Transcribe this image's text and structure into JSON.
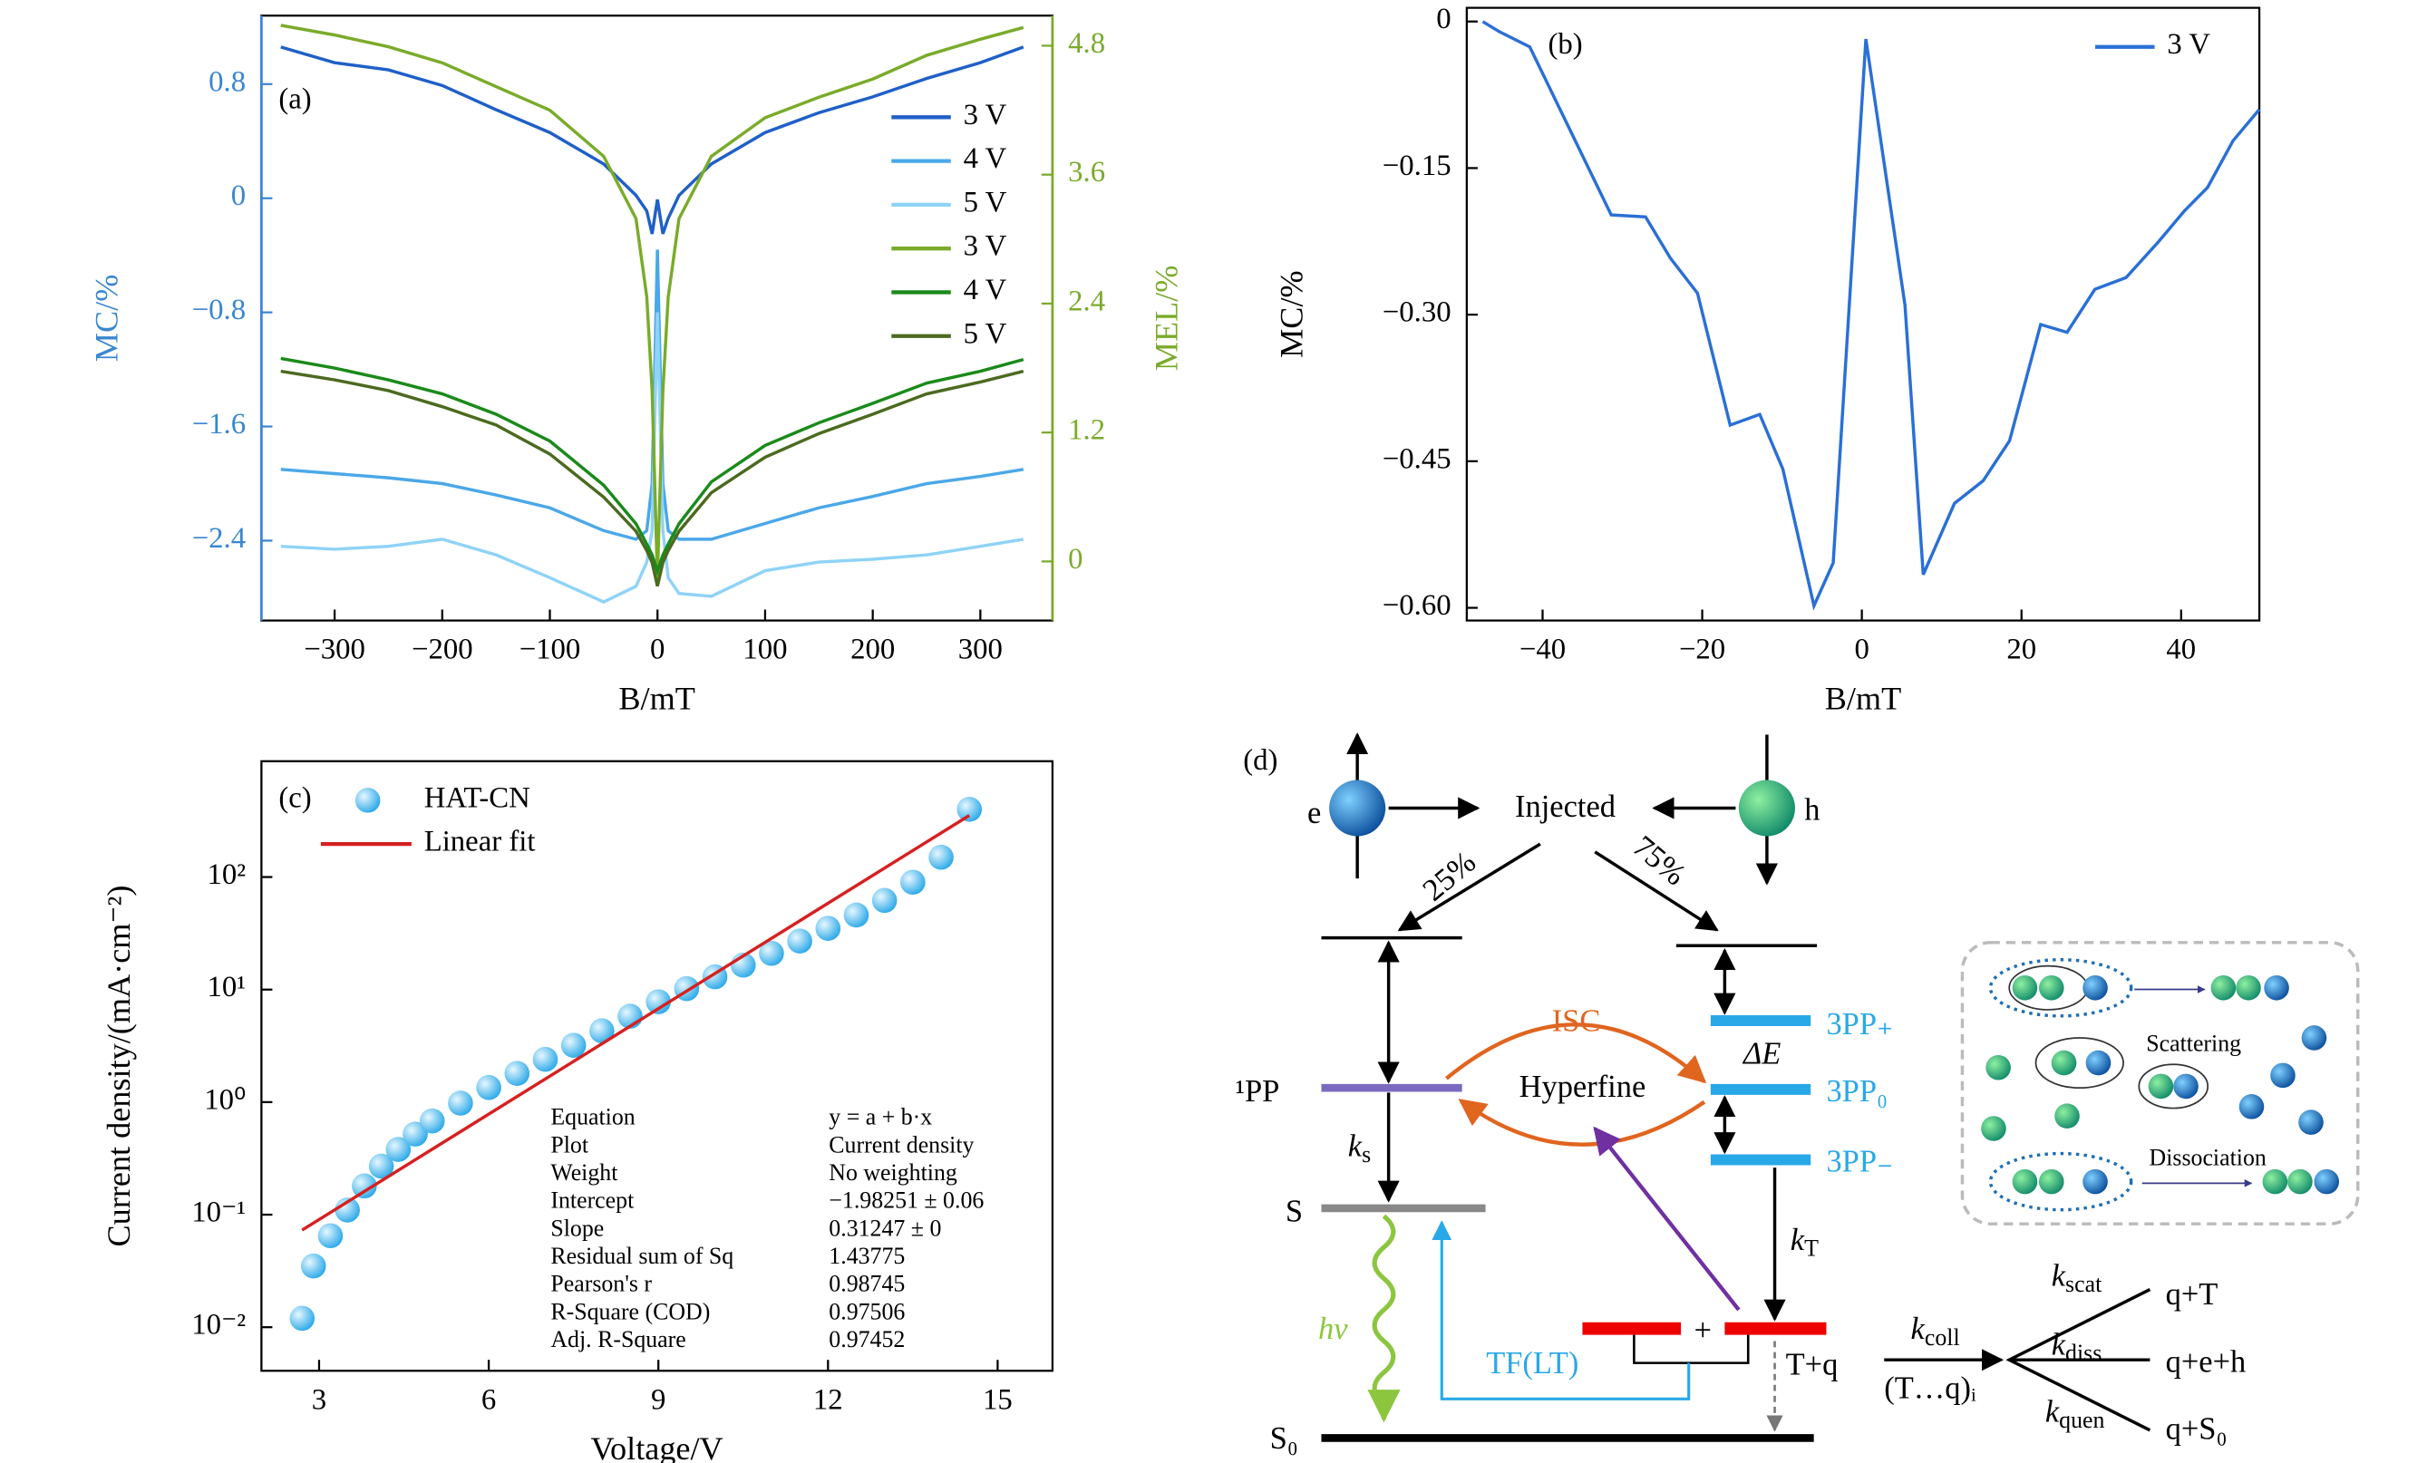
{
  "chart_data": [
    {
      "type": "line",
      "label": "(a)",
      "xlabel": "B/mT",
      "ylabel": "MC/%",
      "y2label": "MEL/%",
      "ycolor": "#3a86d0",
      "y2color": "#7aab2a",
      "legend": "center right",
      "x": [
        -350,
        -300,
        -250,
        -200,
        -150,
        -100,
        -50,
        -20,
        -10,
        -5,
        0,
        5,
        10,
        20,
        50,
        100,
        150,
        200,
        250,
        300,
        340
      ],
      "series": [
        {
          "name": "3 V",
          "color": "#1f5fc8",
          "axis": "y",
          "values": [
            1.06,
            0.95,
            0.9,
            0.79,
            0.62,
            0.46,
            0.24,
            0.02,
            -0.09,
            -0.25,
            -0.01,
            -0.25,
            -0.14,
            0.02,
            0.24,
            0.46,
            0.6,
            0.71,
            0.84,
            0.95,
            1.06
          ]
        },
        {
          "name": "4 V",
          "color": "#4aa8e8",
          "axis": "y",
          "values": [
            -1.9,
            -1.93,
            -1.96,
            -2.0,
            -2.08,
            -2.17,
            -2.33,
            -2.39,
            -2.33,
            -2.0,
            -0.36,
            -2.0,
            -2.33,
            -2.39,
            -2.39,
            -2.28,
            -2.17,
            -2.09,
            -2.0,
            -1.95,
            -1.9
          ]
        },
        {
          "name": "5 V",
          "color": "#8fd3f7",
          "axis": "y",
          "values": [
            -2.44,
            -2.46,
            -2.44,
            -2.39,
            -2.5,
            -2.66,
            -2.83,
            -2.72,
            -2.55,
            -2.33,
            -0.8,
            -2.33,
            -2.66,
            -2.77,
            -2.79,
            -2.61,
            -2.55,
            -2.53,
            -2.5,
            -2.44,
            -2.39
          ]
        },
        {
          "name": "3 V",
          "color": "#7aab2a",
          "axis": "y2",
          "values": [
            4.99,
            4.9,
            4.79,
            4.64,
            4.42,
            4.2,
            3.77,
            3.19,
            2.46,
            1.59,
            -0.16,
            1.59,
            2.46,
            3.19,
            3.77,
            4.13,
            4.32,
            4.49,
            4.71,
            4.86,
            4.97
          ]
        },
        {
          "name": "4 V",
          "color": "#1a8a1a",
          "axis": "y2",
          "values": [
            1.89,
            1.8,
            1.69,
            1.56,
            1.37,
            1.12,
            0.71,
            0.35,
            0.16,
            0.06,
            -0.09,
            0.06,
            0.16,
            0.35,
            0.74,
            1.08,
            1.29,
            1.47,
            1.66,
            1.77,
            1.88
          ]
        },
        {
          "name": "5 V",
          "color": "#4b6a1f",
          "axis": "y2",
          "values": [
            1.77,
            1.69,
            1.59,
            1.44,
            1.27,
            1.0,
            0.6,
            0.28,
            0.1,
            -0.01,
            -0.23,
            -0.01,
            0.1,
            0.28,
            0.64,
            0.97,
            1.19,
            1.37,
            1.56,
            1.67,
            1.77
          ]
        }
      ],
      "xlim": [
        -368,
        367
      ],
      "xticks": [
        {
          "value": -300,
          "label": "−300"
        },
        {
          "value": -200,
          "label": "−200"
        },
        {
          "value": -100,
          "label": "−100"
        },
        0,
        100,
        200,
        300
      ],
      "ylim": [
        -2.96,
        1.28
      ],
      "yticks": [
        0.8,
        0,
        {
          "value": -0.8,
          "label": "−0.8"
        },
        {
          "value": -1.6,
          "label": "−1.6"
        },
        {
          "value": -2.4,
          "label": "−2.4"
        }
      ],
      "y2lim": [
        -0.55,
        5.08
      ],
      "y2ticks": [
        0,
        1.2,
        2.4,
        3.6,
        4.8
      ]
    },
    {
      "type": "line",
      "label": "(b)",
      "xlabel": "B/mT",
      "ylabel": "MC/%",
      "legend": "upper right",
      "x": [
        -47.5,
        -45.5,
        -41.6,
        -31.4,
        -27.1,
        -24.0,
        -20.6,
        -16.5,
        -12.8,
        -9.9,
        -6.0,
        -3.6,
        0.5,
        5.4,
        7.7,
        11.6,
        15.2,
        18.5,
        22.4,
        25.7,
        29.2,
        33.1,
        37.1,
        40.4,
        43.3,
        46.5,
        49.8
      ],
      "series": [
        {
          "name": "3 V",
          "color": "#2a6fd6",
          "values": [
            0,
            -0.01,
            -0.026,
            -0.198,
            -0.2,
            -0.242,
            -0.278,
            -0.413,
            -0.402,
            -0.458,
            -0.598,
            -0.554,
            -0.018,
            -0.29,
            -0.566,
            -0.493,
            -0.47,
            -0.429,
            -0.31,
            -0.318,
            -0.274,
            -0.262,
            -0.226,
            -0.194,
            -0.17,
            -0.122,
            -0.09
          ]
        }
      ],
      "xlim": [
        -49.5,
        49.8
      ],
      "xticks": [
        {
          "value": -40,
          "label": "−40"
        },
        {
          "value": -20,
          "label": "−20"
        },
        0,
        20,
        40
      ],
      "ylim": [
        -0.613,
        0.014
      ],
      "yticks": [
        0,
        {
          "value": -0.15,
          "label": "−0.15"
        },
        {
          "value": -0.3,
          "label": "−0.30"
        },
        {
          "value": -0.45,
          "label": "−0.45"
        },
        {
          "value": -0.6,
          "label": "−0.60"
        }
      ]
    },
    {
      "type": "scatter",
      "label": "(c)",
      "xlabel": "Voltage/V",
      "ylabel": "Current density/(mA·cm⁻²)",
      "yscale": "log",
      "legend": "upper left",
      "series": [
        {
          "name": "HAT-CN",
          "color": "#29a8e8",
          "x": [
            2.7,
            2.9,
            3.2,
            3.5,
            3.8,
            4.1,
            4.4,
            4.7,
            5.0,
            5.5,
            6.0,
            6.5,
            7.0,
            7.5,
            8.0,
            8.5,
            9.0,
            9.5,
            10.0,
            10.5,
            11.0,
            11.5,
            12.0,
            12.5,
            13.0,
            13.5,
            14.0,
            14.5
          ],
          "values": [
            0.012,
            0.035,
            0.065,
            0.11,
            0.18,
            0.27,
            0.38,
            0.52,
            0.68,
            0.98,
            1.35,
            1.8,
            2.4,
            3.2,
            4.3,
            5.8,
            7.8,
            10.2,
            13,
            16.5,
            21,
            27,
            35,
            46,
            62,
            90,
            150,
            400
          ]
        },
        {
          "name": "Linear fit",
          "color": "#d62020",
          "style": "line",
          "x": [
            2.7,
            14.5
          ],
          "values": [
            0.073,
            353
          ]
        }
      ],
      "xlim": [
        1.98,
        15.97
      ],
      "xticks": [
        3,
        6,
        9,
        12,
        15
      ],
      "ylim": [
        0.0041,
        1070
      ],
      "yticks": [
        {
          "value": 0.01,
          "label": "10⁻²"
        },
        {
          "value": 0.1,
          "label": "10⁻¹"
        },
        {
          "value": 1,
          "label": "10⁰"
        },
        {
          "value": 10,
          "label": "10¹"
        },
        {
          "value": 100,
          "label": "10²"
        }
      ],
      "fit_table": [
        [
          "Equation",
          "y = a + b·x"
        ],
        [
          "Plot",
          "Current density"
        ],
        [
          "Weight",
          "No weighting"
        ],
        [
          "Intercept",
          "−1.98251 ± 0.06"
        ],
        [
          "Slope",
          "0.31247 ± 0"
        ],
        [
          "Residual sum of Sq",
          "1.43775"
        ],
        [
          "Pearson's r",
          "0.98745"
        ],
        [
          "R-Square (COD)",
          "0.97506"
        ],
        [
          "Adj. R-Square",
          "0.97452"
        ]
      ]
    }
  ],
  "diagram": {
    "label": "(d)",
    "e": "e",
    "h": "h",
    "injected": "Injected",
    "p25": "25%",
    "p75": "75%",
    "pp1": "¹PP",
    "isc": "ISC",
    "hyperfine": "Hyperfine",
    "delta_e": "ΔE",
    "pp_plus": "3PP₊",
    "pp_zero": "3PP₀",
    "pp_minus": "3PP₋",
    "k_s": [
      "k",
      "s"
    ],
    "s": "S",
    "k_T": [
      "k",
      "T"
    ],
    "hv": "hν",
    "tf": "TF(LT)",
    "plus": "+",
    "tq": "T+q",
    "s0": "S₀",
    "k_coll": [
      "k",
      "coll"
    ],
    "complex": "(T…q)ᵢ",
    "k_scat": [
      "k",
      "scat"
    ],
    "k_diss": [
      "k",
      "diss"
    ],
    "k_quen": [
      "k",
      "quen"
    ],
    "q_t": "q+T",
    "q_eh": "q+e+h",
    "q_s0": "q+S₀",
    "scattering": "Scattering",
    "dissociation": "Dissociation"
  }
}
